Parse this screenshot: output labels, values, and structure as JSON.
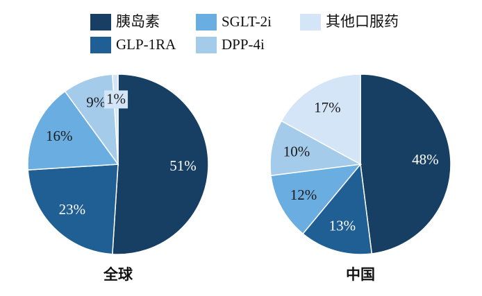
{
  "chart_data": [
    {
      "type": "pie",
      "title": "全球",
      "categories": [
        "胰岛素",
        "GLP-1RA",
        "SGLT-2i",
        "DPP-4i",
        "其他口服药"
      ],
      "colors": [
        "#173f63",
        "#1f5f93",
        "#6aade0",
        "#a5cbeb",
        "#d3e5f6"
      ],
      "values": [
        51,
        23,
        16,
        9,
        1
      ],
      "value_labels": [
        "51%",
        "23%",
        "16%",
        "9%",
        "1%"
      ]
    },
    {
      "type": "pie",
      "title": "中国",
      "values": [
        48,
        13,
        12,
        10,
        17
      ],
      "value_labels": [
        "48%",
        "13%",
        "12%",
        "10%",
        "17%"
      ]
    }
  ]
}
